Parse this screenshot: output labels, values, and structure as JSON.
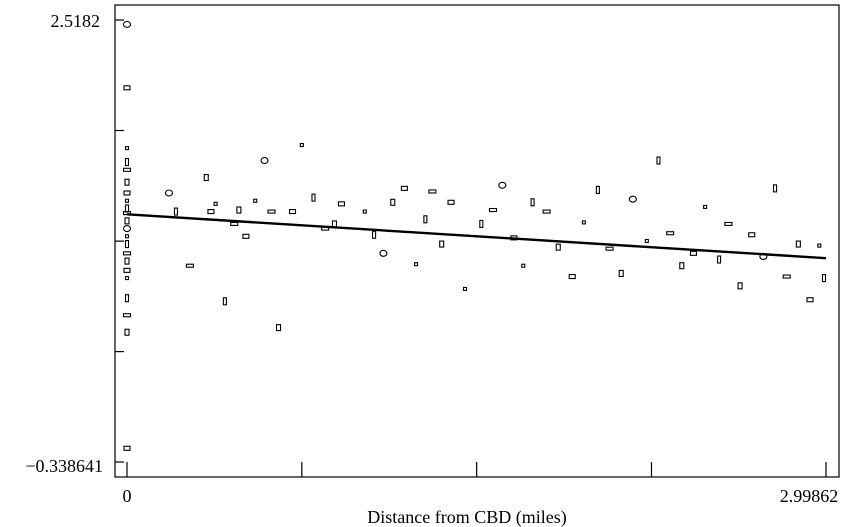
{
  "chart_data": {
    "type": "scatter",
    "title": "",
    "xlabel": "Distance from CBD (miles)",
    "ylabel": "",
    "xlim": [
      0,
      2.99862
    ],
    "ylim": [
      -0.338641,
      2.5182
    ],
    "x_tick_labels": [
      {
        "value": 0,
        "label": "0"
      },
      {
        "value": 2.99862,
        "label": "2.99862"
      }
    ],
    "y_tick_labels": [
      {
        "value": 2.5182,
        "label": "2.5182"
      },
      {
        "value": -0.338641,
        "label": "−0.338641"
      }
    ],
    "x_minor_ticks": [
      0,
      0.75,
      1.5,
      2.25,
      2.99862
    ],
    "y_minor_ticks": [
      2.5182,
      1.804,
      1.089,
      0.375,
      -0.338641
    ],
    "fit_line": {
      "x": [
        0,
        2.99862
      ],
      "y": [
        1.262,
        0.979
      ]
    },
    "point_markers": [
      "rect",
      "ellipse"
    ],
    "series": [
      {
        "values": [
          [
            0.0,
            2.49
          ],
          [
            0.0,
            2.08
          ],
          [
            0.0,
            1.69
          ],
          [
            0.0,
            1.6
          ],
          [
            0.0,
            1.55
          ],
          [
            0.0,
            1.47
          ],
          [
            0.0,
            1.4
          ],
          [
            0.0,
            1.35
          ],
          [
            0.0,
            1.3
          ],
          [
            0.0,
            1.27
          ],
          [
            0.0,
            1.22
          ],
          [
            0.0,
            1.17
          ],
          [
            0.0,
            1.12
          ],
          [
            0.0,
            1.07
          ],
          [
            0.0,
            1.01
          ],
          [
            0.0,
            0.96
          ],
          [
            0.0,
            0.9
          ],
          [
            0.0,
            0.85
          ],
          [
            0.0,
            0.72
          ],
          [
            0.0,
            0.61
          ],
          [
            0.0,
            0.5
          ],
          [
            0.0,
            -0.25
          ],
          [
            0.18,
            1.4
          ],
          [
            0.21,
            1.28
          ],
          [
            0.27,
            0.93
          ],
          [
            0.34,
            1.5
          ],
          [
            0.36,
            1.28
          ],
          [
            0.38,
            1.33
          ],
          [
            0.42,
            0.7
          ],
          [
            0.46,
            1.2
          ],
          [
            0.48,
            1.29
          ],
          [
            0.51,
            1.12
          ],
          [
            0.55,
            1.35
          ],
          [
            0.59,
            1.61
          ],
          [
            0.62,
            1.28
          ],
          [
            0.65,
            0.53
          ],
          [
            0.71,
            1.28
          ],
          [
            0.75,
            1.71
          ],
          [
            0.8,
            1.37
          ],
          [
            0.85,
            1.17
          ],
          [
            0.89,
            1.2
          ],
          [
            0.92,
            1.33
          ],
          [
            1.02,
            1.28
          ],
          [
            1.06,
            1.13
          ],
          [
            1.1,
            1.01
          ],
          [
            1.14,
            1.34
          ],
          [
            1.19,
            1.43
          ],
          [
            1.24,
            0.94
          ],
          [
            1.28,
            1.23
          ],
          [
            1.31,
            1.41
          ],
          [
            1.35,
            1.07
          ],
          [
            1.39,
            1.34
          ],
          [
            1.45,
            0.78
          ],
          [
            1.52,
            1.2
          ],
          [
            1.57,
            1.29
          ],
          [
            1.61,
            1.45
          ],
          [
            1.66,
            1.11
          ],
          [
            1.7,
            0.93
          ],
          [
            1.74,
            1.34
          ],
          [
            1.8,
            1.28
          ],
          [
            1.85,
            1.05
          ],
          [
            1.91,
            0.86
          ],
          [
            1.96,
            1.21
          ],
          [
            2.02,
            1.42
          ],
          [
            2.07,
            1.04
          ],
          [
            2.12,
            0.88
          ],
          [
            2.17,
            1.36
          ],
          [
            2.23,
            1.09
          ],
          [
            2.28,
            1.61
          ],
          [
            2.33,
            1.14
          ],
          [
            2.38,
            0.93
          ],
          [
            2.43,
            1.01
          ],
          [
            2.48,
            1.31
          ],
          [
            2.54,
            0.97
          ],
          [
            2.58,
            1.2
          ],
          [
            2.63,
            0.8
          ],
          [
            2.68,
            1.13
          ],
          [
            2.73,
            0.99
          ],
          [
            2.78,
            1.43
          ],
          [
            2.83,
            0.86
          ],
          [
            2.88,
            1.07
          ],
          [
            2.93,
            0.71
          ],
          [
            2.97,
            1.06
          ],
          [
            2.99,
            0.85
          ]
        ]
      }
    ]
  }
}
